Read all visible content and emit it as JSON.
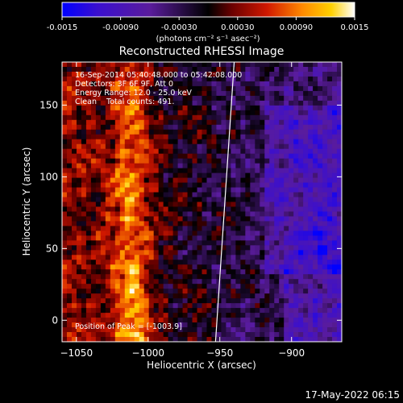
{
  "chart_data": {
    "type": "heatmap",
    "title": "Reconstructed RHESSI Image",
    "xlabel": "Heliocentric X (arcsec)",
    "ylabel": "Heliocentric Y (arcsec)",
    "xlim": [
      -1060,
      -865
    ],
    "ylim": [
      -15,
      180
    ],
    "x_ticks": [
      -1050,
      -1000,
      -950,
      -900
    ],
    "y_ticks": [
      0,
      50,
      100,
      150
    ],
    "colorbar": {
      "range": [
        -0.0015,
        0.0015
      ],
      "ticks": [
        "-0.0015",
        "-0.00090",
        "-0.00030",
        "0.00030",
        "0.00090",
        "0.0015"
      ],
      "unit_label": "(photons cm⁻² s⁻¹ asec⁻²)",
      "colors": [
        "#0000ff",
        "#3a0fcf",
        "#5a1c9c",
        "#000000",
        "#6a0000",
        "#d01800",
        "#ff8800",
        "#ffd000",
        "#ffffff"
      ]
    },
    "annotations": [
      "16-Sep-2014 05:40:48.000 to 05:42:08.000",
      "Detectors: 3F 6F 9F, Att 0",
      "Energy Range: 12.0 - 25.0 keV",
      "Clean    Total counts: 491.",
      "Position of Peak = [-1003.9]"
    ],
    "limb_line": {
      "x": [
        -953,
        -940
      ],
      "y": [
        -15,
        180
      ]
    },
    "grid": false
  },
  "footer": {
    "date": "17-May-2022 06:15"
  }
}
